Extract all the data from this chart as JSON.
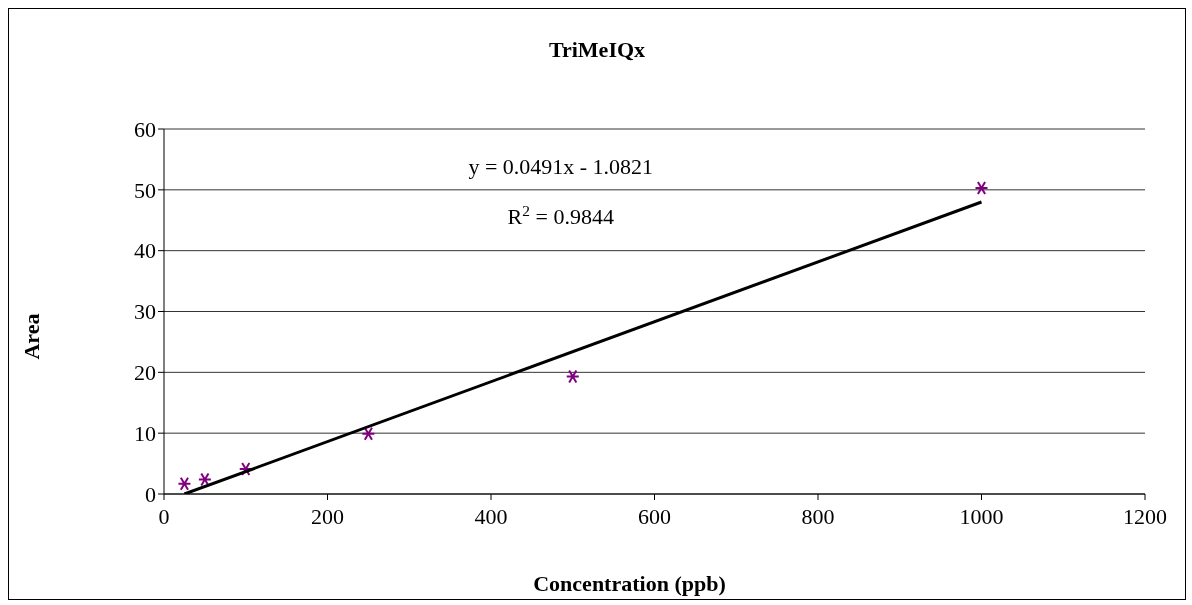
{
  "chart_data": {
    "type": "scatter",
    "title": "TriMeIQx",
    "xlabel": "Concentration (ppb)",
    "ylabel": "Area",
    "x": [
      25,
      50,
      100,
      250,
      500,
      1000
    ],
    "series": [
      {
        "color": "#800080",
        "marker": "cross",
        "values": [
          1.7,
          2.4,
          4.1,
          9.9,
          19.3,
          50.3
        ]
      },
      {
        "type": "line",
        "color": "#000000",
        "x": [
          25,
          1000
        ],
        "values": [
          0,
          48
        ],
        "marker": "none"
      }
    ],
    "annotations": [
      "y = 0.0491x - 1.0821",
      "R$^{2}$ = 0.9844"
    ],
    "xlim": [
      0,
      1200
    ],
    "xticks": [
      0,
      200,
      400,
      600,
      800,
      1000,
      1200
    ],
    "ylim": [
      0,
      60
    ],
    "yticks": [
      0,
      10,
      20,
      30,
      40,
      50,
      60
    ],
    "grid": "y"
  }
}
